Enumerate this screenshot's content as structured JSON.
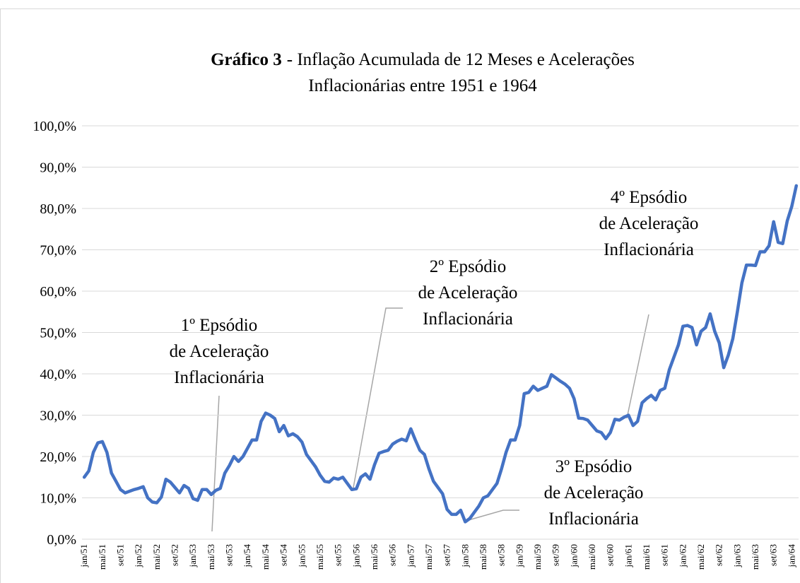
{
  "chart_data": {
    "type": "line",
    "title": [
      "Gráfico 3",
      "- Inflação Acumulada de 12 Meses e Acelerações",
      "Inflacionárias entre 1951 e 1964"
    ],
    "categories": [
      "jan/51",
      null,
      null,
      null,
      "mai/51",
      null,
      null,
      null,
      "set/51",
      null,
      null,
      null,
      "jan/52",
      null,
      null,
      null,
      "mai/52",
      null,
      null,
      null,
      "set/52",
      null,
      null,
      null,
      "jan/53",
      null,
      null,
      null,
      "mai/53",
      null,
      null,
      null,
      "set/53",
      null,
      null,
      null,
      "jan/54",
      null,
      null,
      null,
      "mai/54",
      null,
      null,
      null,
      "set/54",
      null,
      null,
      null,
      "jan/55",
      null,
      null,
      null,
      "mai/55",
      null,
      null,
      null,
      "set/55",
      null,
      null,
      null,
      "jan/56",
      null,
      null,
      null,
      "mai/56",
      null,
      null,
      null,
      "set/56",
      null,
      null,
      null,
      "jan/57",
      null,
      null,
      null,
      "mai/57",
      null,
      null,
      null,
      "set/57",
      null,
      null,
      null,
      "jan/58",
      null,
      null,
      null,
      "mai/58",
      null,
      null,
      null,
      "set/58",
      null,
      null,
      null,
      "jan/59",
      null,
      null,
      null,
      "mai/59",
      null,
      null,
      null,
      "set/59",
      null,
      null,
      null,
      "jan/60",
      null,
      null,
      null,
      "mai/60",
      null,
      null,
      null,
      "set/60",
      null,
      null,
      null,
      "jan/61",
      null,
      null,
      null,
      "mai/61",
      null,
      null,
      null,
      "set/61",
      null,
      null,
      null,
      "jan/62",
      null,
      null,
      null,
      "mai/62",
      null,
      null,
      null,
      "set/62",
      null,
      null,
      null,
      "jan/63",
      null,
      null,
      null,
      "mai/63",
      null,
      null,
      null,
      "set/63",
      null,
      null,
      null,
      "jan/64",
      null
    ],
    "values": [
      15,
      16.5,
      21,
      23.3,
      23.6,
      21,
      16,
      14,
      12,
      11.2,
      11.6,
      12,
      12.3,
      12.7,
      10,
      9,
      8.8,
      10.2,
      14.5,
      13.8,
      12.5,
      11.2,
      13,
      12.3,
      9.8,
      9.4,
      12,
      12,
      10.8,
      11.8,
      12.3,
      16,
      17.8,
      20,
      18.8,
      20,
      22,
      24,
      24,
      28.5,
      30.5,
      30,
      29.2,
      26,
      27.5,
      25,
      25.5,
      24.8,
      23.5,
      20.5,
      19,
      17.5,
      15.5,
      14,
      13.8,
      14.8,
      14.5,
      15,
      13.5,
      12,
      12.2,
      15,
      15.8,
      14.5,
      18,
      20.8,
      21.2,
      21.5,
      23,
      23.7,
      24.2,
      23.8,
      26.7,
      24,
      21.5,
      20.5,
      17,
      14,
      12.5,
      11,
      7.2,
      6,
      6,
      7,
      4.2,
      5,
      6.5,
      8,
      10,
      10.5,
      12,
      13.5,
      17,
      21,
      24,
      24,
      27.5,
      35.2,
      35.5,
      37,
      36,
      36.5,
      37,
      39.8,
      39,
      38.2,
      37.5,
      36.5,
      34,
      29.3,
      29.2,
      28.8,
      27.5,
      26.2,
      25.8,
      24.3,
      25.8,
      29,
      28.8,
      29.5,
      30,
      27.5,
      28.5,
      33,
      34,
      34.8,
      33.7,
      36,
      36.5,
      41,
      44,
      47,
      51.5,
      51.7,
      51.2,
      47,
      50.3,
      51.2,
      54.5,
      50.3,
      47.5,
      41.5,
      44.5,
      48.5,
      55,
      62,
      66.3,
      66.3,
      66.2,
      69.5,
      69.5,
      71,
      76.8,
      71.8,
      71.5,
      77,
      80.5,
      85.5
    ],
    "color": "#4472c4",
    "ylim": [
      0,
      100
    ],
    "yticks": [
      {
        "value": 0,
        "label": "0,0%"
      },
      {
        "value": 10,
        "label": "10,0%"
      },
      {
        "value": 20,
        "label": "20,0%"
      },
      {
        "value": 30,
        "label": "30,0%"
      },
      {
        "value": 40,
        "label": "40,0%"
      },
      {
        "value": 50,
        "label": "50,0%"
      },
      {
        "value": 60,
        "label": "60,0%"
      },
      {
        "value": 70,
        "label": "70,0%"
      },
      {
        "value": 80,
        "label": "80,0%"
      },
      {
        "value": 90,
        "label": "90,0%"
      },
      {
        "value": 100,
        "label": "100,0%"
      }
    ],
    "grid": true,
    "annotations": [
      {
        "lines": [
          "1º Epsódio",
          "de Aceleração",
          "Inflacionária"
        ]
      },
      {
        "lines": [
          "2º Epsódio",
          "de Aceleração",
          "Inflacionária"
        ]
      },
      {
        "lines": [
          "3º Epsódio",
          "de Aceleração",
          "Inflacionária"
        ]
      },
      {
        "lines": [
          "4º Epsódio",
          "de Aceleração",
          "Inflacionária"
        ]
      }
    ]
  }
}
